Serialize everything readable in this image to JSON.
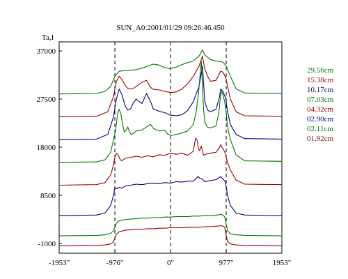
{
  "chart_data": {
    "type": "line",
    "title": "SUN_A0:2001/01/29 09:26:46.450",
    "ylabel": "Ta,I",
    "xlabel": "",
    "xlim": [
      -1953,
      1953
    ],
    "ylim": [
      -1000,
      37000
    ],
    "x_tick_values": [
      -1953,
      -976,
      0,
      977,
      1953
    ],
    "x_tick_labels": [
      "-1953\"",
      "-976\"",
      "0\"",
      "977\"",
      "1953\""
    ],
    "y_tick_values": [
      37000,
      27500,
      18000,
      8500,
      -1000
    ],
    "y_tick_labels": [
      "37000",
      "27500",
      "18000",
      "8500",
      "-1000"
    ],
    "vlines": [
      -976,
      0,
      977
    ],
    "legend_position": "right",
    "grid": false,
    "series": [
      {
        "name": "29.56cm",
        "color": "#007700",
        "x": [
          -1953,
          -1300,
          -1150,
          -1050,
          -976,
          -900,
          -800,
          -700,
          -600,
          -500,
          -400,
          -300,
          -200,
          -100,
          0,
          100,
          200,
          300,
          400,
          500,
          560,
          600,
          700,
          800,
          870,
          920,
          977,
          1050,
          1150,
          1300,
          1953
        ],
        "y": [
          28500,
          28600,
          29000,
          30000,
          32000,
          33000,
          33100,
          33200,
          33300,
          33600,
          34000,
          34400,
          34200,
          33700,
          33500,
          33800,
          34300,
          34700,
          35000,
          36000,
          37200,
          36200,
          35300,
          35000,
          34900,
          34800,
          34000,
          32000,
          29500,
          28700,
          28600
        ]
      },
      {
        "name": "15.38cm",
        "color": "#990000",
        "x": [
          -1953,
          -1300,
          -1100,
          -1000,
          -950,
          -900,
          -850,
          -800,
          -750,
          -700,
          -650,
          -600,
          -500,
          -420,
          -350,
          -300,
          -200,
          -100,
          0,
          100,
          200,
          300,
          400,
          500,
          560,
          600,
          650,
          700,
          800,
          880,
          920,
          970,
          1000,
          1050,
          1150,
          1300,
          1953
        ],
        "y": [
          24000,
          24100,
          25000,
          28000,
          31000,
          32000,
          31300,
          30300,
          29600,
          29500,
          29600,
          30000,
          30800,
          31200,
          29800,
          29400,
          29300,
          29000,
          28800,
          28900,
          29500,
          30500,
          32000,
          34000,
          36000,
          33500,
          32000,
          31000,
          31200,
          33000,
          32800,
          31700,
          30000,
          27500,
          25000,
          24200,
          24100
        ]
      },
      {
        "name": "10.17cm",
        "color": "#000080",
        "x": [
          -1953,
          -1300,
          -1100,
          -1000,
          -950,
          -900,
          -850,
          -800,
          -750,
          -700,
          -650,
          -600,
          -500,
          -420,
          -350,
          -300,
          -200,
          -100,
          0,
          100,
          200,
          300,
          400,
          500,
          560,
          600,
          650,
          700,
          800,
          860,
          880,
          920,
          970,
          1000,
          1050,
          1150,
          1300,
          1953
        ],
        "y": [
          19500,
          19600,
          20500,
          24000,
          27500,
          29500,
          28300,
          26200,
          25300,
          25600,
          26800,
          27500,
          26600,
          28600,
          27000,
          25500,
          25100,
          24800,
          24300,
          24200,
          24400,
          25200,
          27000,
          30000,
          34000,
          27000,
          25300,
          25000,
          25500,
          28000,
          29500,
          29000,
          27500,
          25000,
          22500,
          20500,
          19700,
          19600
        ]
      },
      {
        "name": "07.03cm",
        "color": "#007700",
        "x": [
          -1953,
          -1300,
          -1150,
          -1050,
          -1000,
          -960,
          -930,
          -900,
          -870,
          -840,
          -810,
          -780,
          -750,
          -720,
          -690,
          -650,
          -600,
          -500,
          -420,
          -350,
          -300,
          -200,
          -100,
          -50,
          0,
          100,
          200,
          300,
          400,
          450,
          490,
          520,
          540,
          560,
          580,
          600,
          640,
          700,
          800,
          850,
          880,
          900,
          920,
          950,
          980,
          1000,
          1050,
          1150,
          1300,
          1953
        ],
        "y": [
          15000,
          15100,
          15500,
          17000,
          19500,
          21500,
          24500,
          25500,
          24500,
          22500,
          21000,
          21300,
          22000,
          21000,
          20500,
          20700,
          21200,
          21400,
          22000,
          22500,
          21700,
          21200,
          21300,
          20600,
          20300,
          20500,
          20800,
          21200,
          22500,
          25000,
          28500,
          32500,
          35000,
          30000,
          25500,
          23000,
          22000,
          21800,
          22200,
          25000,
          28500,
          29000,
          28300,
          27000,
          24500,
          22000,
          19500,
          16500,
          15300,
          15200
        ]
      },
      {
        "name": "04.32cm",
        "color": "#990000",
        "x": [
          -1953,
          -1300,
          -1150,
          -1050,
          -1000,
          -976,
          -950,
          -920,
          -890,
          -860,
          -830,
          -800,
          -700,
          -600,
          -500,
          -400,
          -300,
          -200,
          -100,
          0,
          100,
          200,
          300,
          400,
          440,
          470,
          490,
          510,
          540,
          580,
          620,
          700,
          800,
          850,
          880,
          900,
          930,
          960,
          980,
          1000,
          1050,
          1150,
          1300,
          1953
        ],
        "y": [
          10500,
          10600,
          11000,
          12500,
          14500,
          16000,
          16800,
          16500,
          15700,
          15300,
          15500,
          15800,
          16000,
          16200,
          16000,
          16300,
          16100,
          16500,
          16400,
          16800,
          16600,
          16800,
          16400,
          17200,
          19800,
          19300,
          17800,
          17300,
          18200,
          16400,
          16600,
          16800,
          17000,
          17800,
          18500,
          18000,
          17500,
          16800,
          15800,
          15000,
          13500,
          11500,
          10700,
          10600
        ]
      },
      {
        "name": "02.90cm",
        "color": "#000080",
        "x": [
          -1953,
          -1300,
          -1150,
          -1050,
          -1000,
          -976,
          -940,
          -900,
          -850,
          -800,
          -700,
          -600,
          -500,
          -400,
          -300,
          -200,
          -100,
          0,
          100,
          200,
          300,
          400,
          450,
          480,
          520,
          560,
          600,
          700,
          800,
          880,
          920,
          960,
          980,
          1000,
          1050,
          1150,
          1300,
          1953
        ],
        "y": [
          4500,
          4600,
          5000,
          6500,
          8500,
          10000,
          9800,
          10100,
          9900,
          10300,
          10500,
          10700,
          10600,
          10800,
          10900,
          10800,
          11000,
          10900,
          11200,
          11100,
          11300,
          11300,
          11800,
          12200,
          11800,
          11700,
          11200,
          11400,
          11600,
          12200,
          11700,
          11200,
          10000,
          8500,
          6500,
          5000,
          4600,
          4500
        ]
      },
      {
        "name": "02.11cm",
        "color": "#007700",
        "x": [
          -1953,
          -1300,
          -1150,
          -1050,
          -1000,
          -976,
          -950,
          -900,
          -800,
          -700,
          -600,
          -500,
          -400,
          -300,
          -200,
          -100,
          0,
          100,
          200,
          300,
          400,
          500,
          600,
          700,
          800,
          900,
          950,
          977,
          1000,
          1050,
          1150,
          1300,
          1953
        ],
        "y": [
          500,
          600,
          700,
          1000,
          1500,
          2200,
          3000,
          3500,
          3700,
          3800,
          3900,
          4000,
          4000,
          4100,
          4100,
          4200,
          4200,
          4300,
          4300,
          4300,
          4400,
          4400,
          4500,
          4500,
          4600,
          4700,
          4300,
          2800,
          1500,
          900,
          700,
          600,
          500
        ]
      },
      {
        "name": "01.92cm",
        "color": "#990000",
        "x": [
          -1953,
          -1300,
          -1150,
          -1050,
          -1000,
          -976,
          -950,
          -900,
          -800,
          -700,
          -600,
          -500,
          -400,
          -300,
          -200,
          -100,
          0,
          100,
          200,
          300,
          400,
          500,
          600,
          700,
          800,
          900,
          950,
          977,
          1000,
          1050,
          1150,
          1300,
          1953
        ],
        "y": [
          -1500,
          -1400,
          -1300,
          -1100,
          -700,
          0,
          800,
          1300,
          1600,
          1700,
          1800,
          1800,
          1900,
          1900,
          2000,
          2000,
          2100,
          2100,
          2100,
          2200,
          2200,
          2200,
          2300,
          2300,
          2400,
          2500,
          2200,
          600,
          -600,
          -1100,
          -1300,
          -1400,
          -1500
        ]
      }
    ]
  }
}
